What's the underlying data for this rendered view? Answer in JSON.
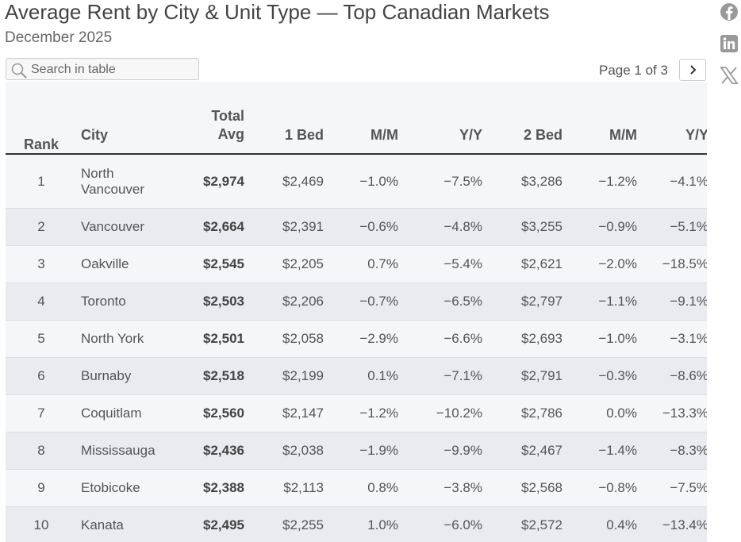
{
  "header": {
    "title": "Average Rent by City & Unit Type — Top Canadian Markets",
    "subtitle": "December 2025"
  },
  "search": {
    "placeholder": "Search in table"
  },
  "pagination": {
    "label": "Page 1 of 3"
  },
  "table": {
    "columns": [
      "Rank",
      "City",
      "Total Avg",
      "1 Bed",
      "M/M",
      "Y/Y",
      "2 Bed",
      "M/M",
      "Y/Y"
    ],
    "rows": [
      [
        "1",
        "North Vancouver",
        "$2,974",
        "$2,469",
        "−1.0%",
        "−7.5%",
        "$3,286",
        "−1.2%",
        "−4.1%"
      ],
      [
        "2",
        "Vancouver",
        "$2,664",
        "$2,391",
        "−0.6%",
        "−4.8%",
        "$3,255",
        "−0.9%",
        "−5.1%"
      ],
      [
        "3",
        "Oakville",
        "$2,545",
        "$2,205",
        "0.7%",
        "−5.4%",
        "$2,621",
        "−2.0%",
        "−18.5%"
      ],
      [
        "4",
        "Toronto",
        "$2,503",
        "$2,206",
        "−0.7%",
        "−6.5%",
        "$2,797",
        "−1.1%",
        "−9.1%"
      ],
      [
        "5",
        "North York",
        "$2,501",
        "$2,058",
        "−2.9%",
        "−6.6%",
        "$2,693",
        "−1.0%",
        "−3.1%"
      ],
      [
        "6",
        "Burnaby",
        "$2,518",
        "$2,199",
        "0.1%",
        "−7.1%",
        "$2,791",
        "−0.3%",
        "−8.6%"
      ],
      [
        "7",
        "Coquitlam",
        "$2,560",
        "$2,147",
        "−1.2%",
        "−10.2%",
        "$2,786",
        "0.0%",
        "−13.3%"
      ],
      [
        "8",
        "Mississauga",
        "$2,436",
        "$2,038",
        "−1.9%",
        "−9.9%",
        "$2,467",
        "−1.4%",
        "−8.3%"
      ],
      [
        "9",
        "Etobicoke",
        "$2,388",
        "$2,113",
        "0.8%",
        "−3.8%",
        "$2,568",
        "−0.8%",
        "−7.5%"
      ],
      [
        "10",
        "Kanata",
        "$2,495",
        "$2,255",
        "1.0%",
        "−6.0%",
        "$2,572",
        "0.4%",
        "−13.4%"
      ]
    ]
  }
}
